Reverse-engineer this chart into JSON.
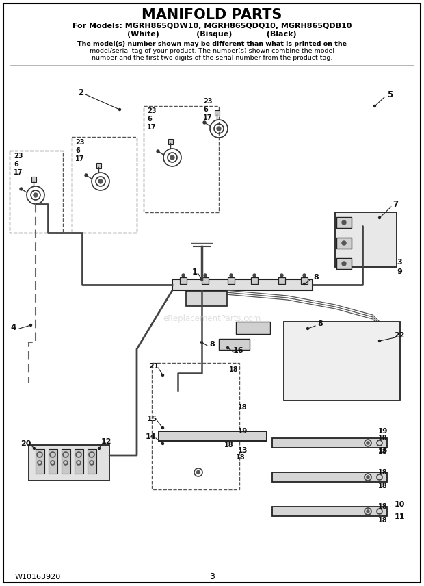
{
  "title": "MANIFOLD PARTS",
  "subtitle_line1": "For Models: MGRH865QDW10, MGRH865QDQ10, MGRH865QDB10",
  "subtitle_line2": "(White)              (Bisque)             (Black)",
  "disclaimer_line1": "The model(s) number shown may be different than what is printed on the",
  "disclaimer_line2": "model/serial tag of your product. The number(s) shown combine the model",
  "disclaimer_line3": "number and the first two digits of the serial number from the product tag.",
  "part_number": "W10163920",
  "page_number": "3",
  "bg_color": "#ffffff",
  "border_color": "#000000",
  "text_color": "#000000",
  "watermark": "eReplacementParts.com"
}
